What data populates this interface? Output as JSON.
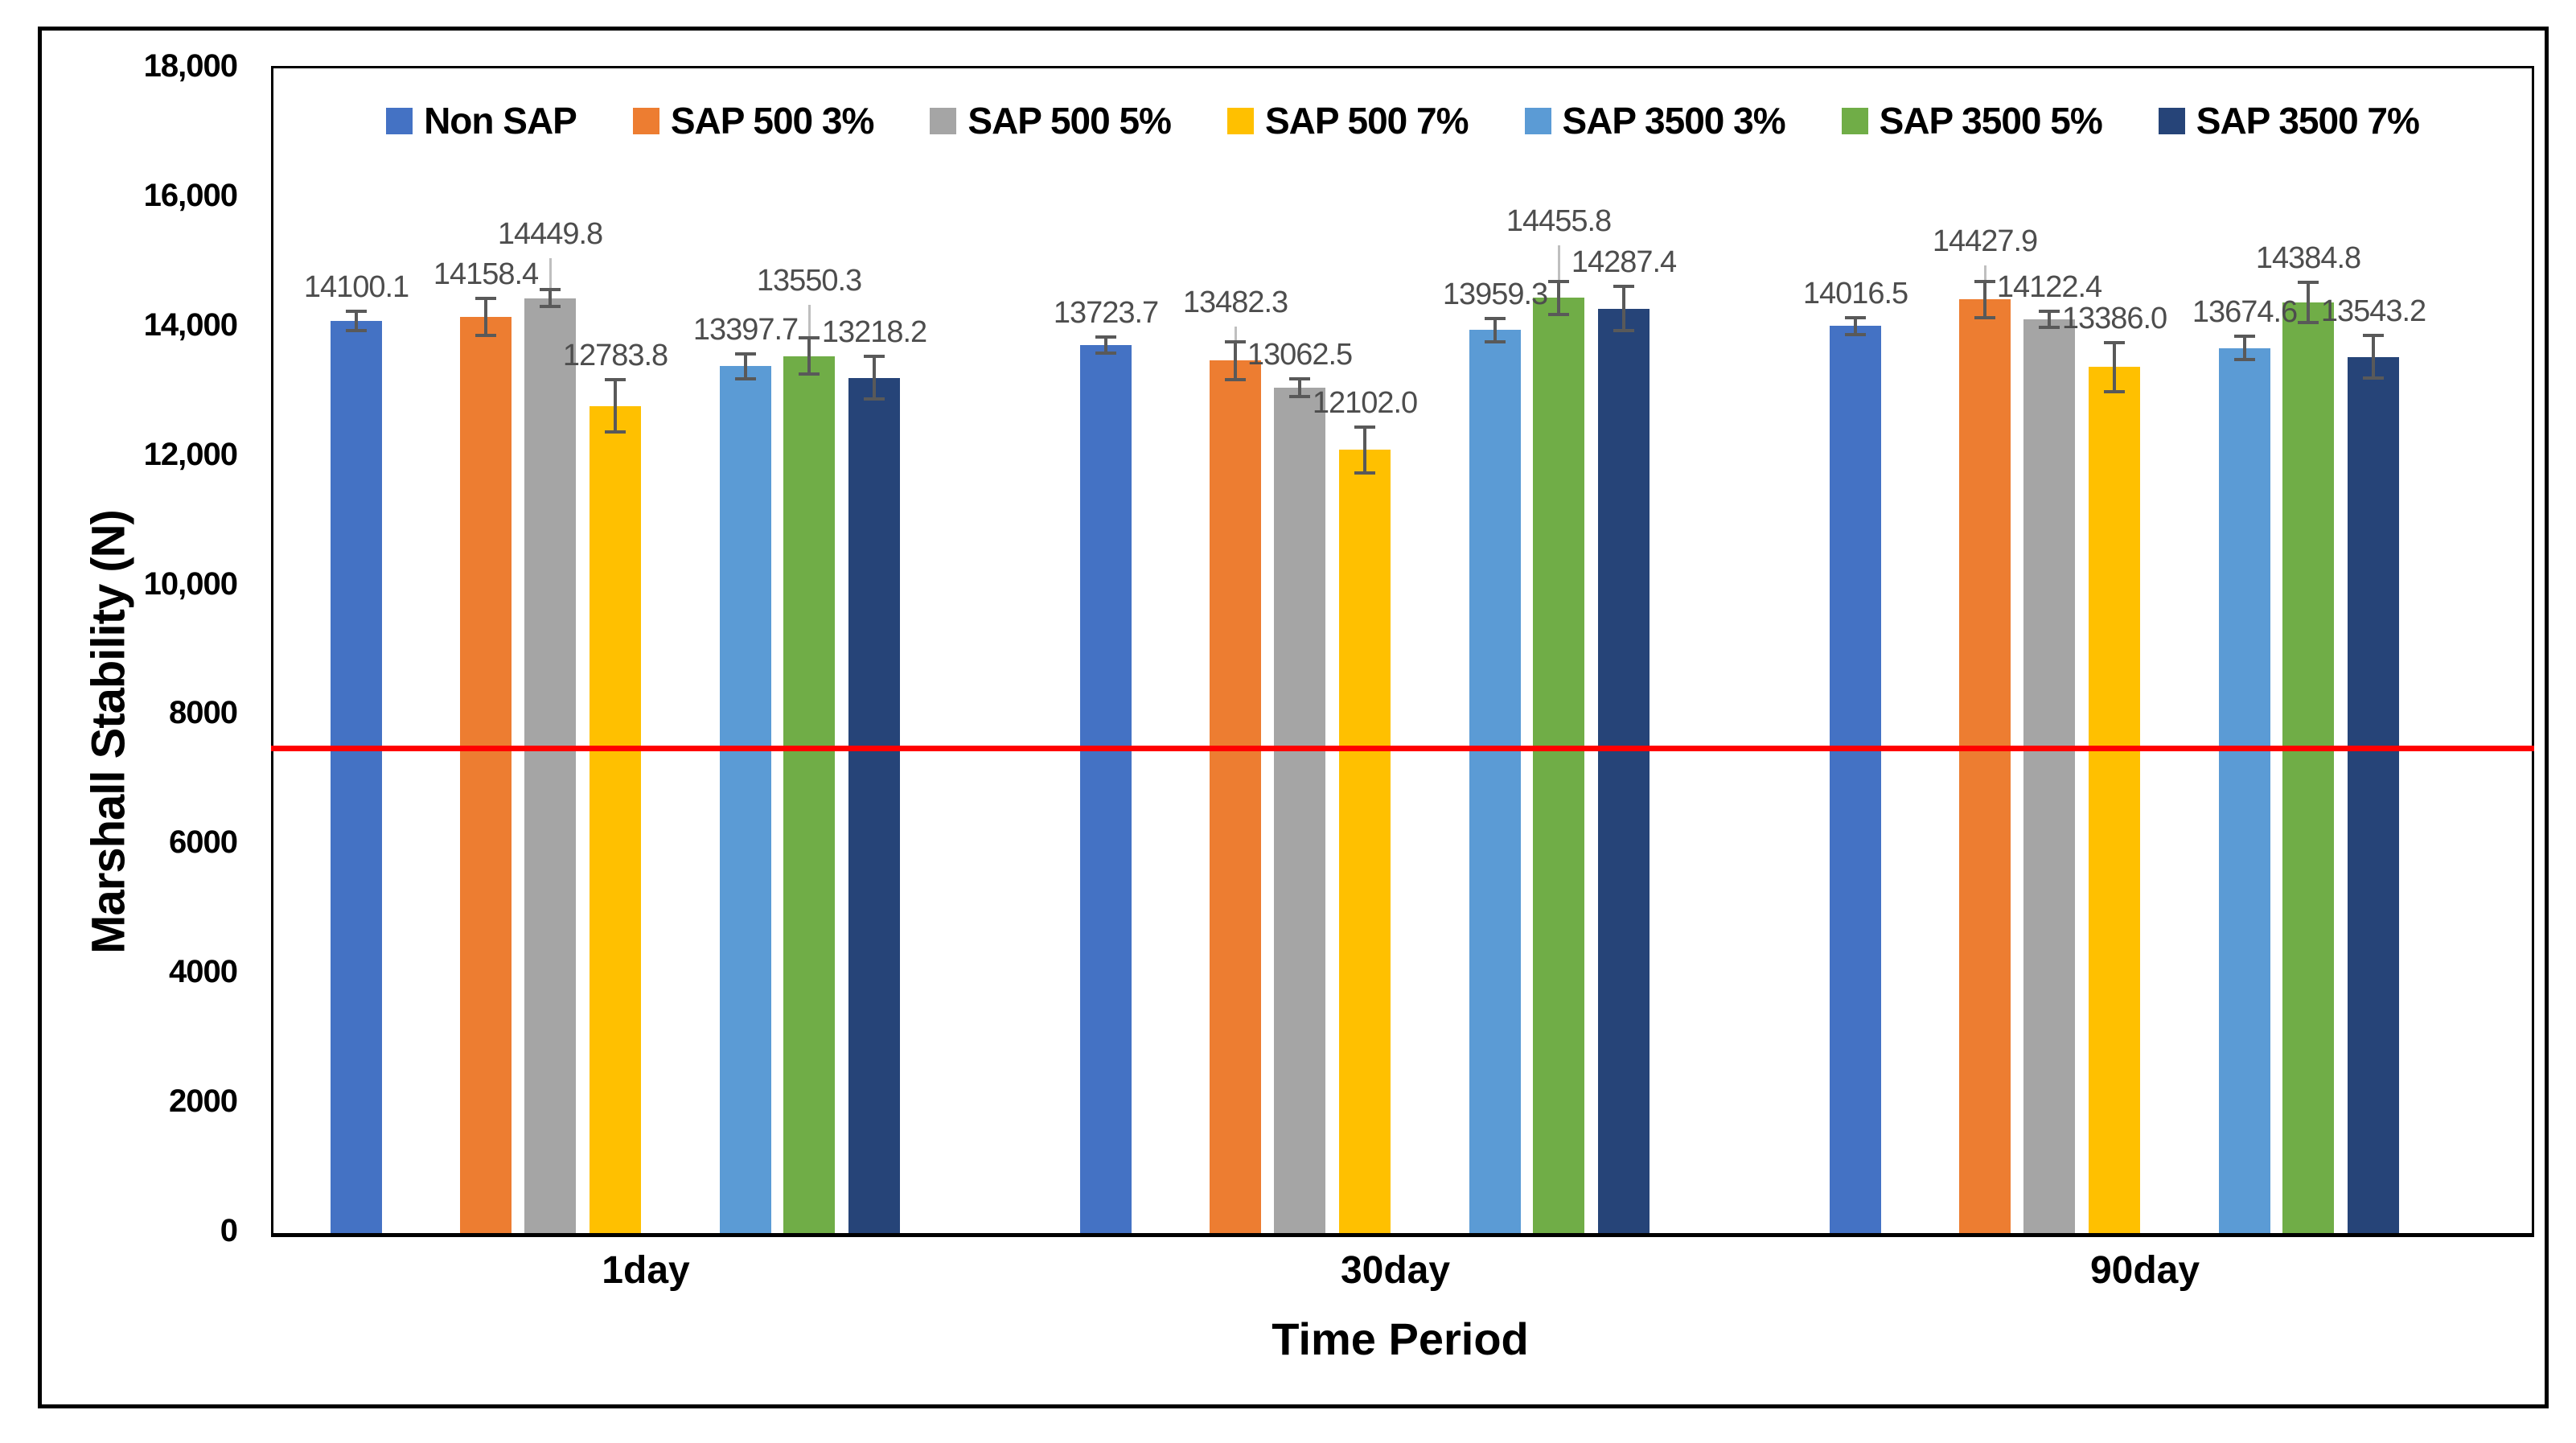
{
  "figure": {
    "background": "#ffffff",
    "border_color": "#000000"
  },
  "chart_data": {
    "type": "bar",
    "title": "",
    "xlabel": "Time Period",
    "ylabel": "Marshall Stability (N)",
    "categories": [
      "1day",
      "30day",
      "90day"
    ],
    "series": [
      {
        "name": "Non SAP",
        "color": "#4472C4",
        "values": [
          14100.1,
          13723.7,
          14016.5
        ],
        "errors": [
          150,
          125,
          130
        ],
        "tails_up": [
          0,
          0,
          0
        ]
      },
      {
        "name": "SAP 500 3%",
        "color": "#ED7D31",
        "values": [
          14158.4,
          13482.3,
          14427.9
        ],
        "errors": [
          290,
          290,
          280
        ],
        "tails_up": [
          0,
          530,
          530
        ]
      },
      {
        "name": "SAP 500 5%",
        "color": "#A5A5A5",
        "values": [
          14449.8,
          13062.5,
          14122.4
        ],
        "errors": [
          130,
          140,
          125
        ],
        "tails_up": [
          620,
          0,
          0
        ]
      },
      {
        "name": "SAP 500 7%",
        "color": "#FFC000",
        "values": [
          12783.8,
          12102.0,
          13386.0
        ],
        "errors": [
          400,
          360,
          380
        ],
        "tails_up": [
          0,
          0,
          0
        ]
      },
      {
        "name": "SAP 3500 3%",
        "color": "#5B9BD5",
        "values": [
          13397.7,
          13959.3,
          13674.6
        ],
        "errors": [
          190,
          180,
          180
        ],
        "tails_up": [
          0,
          0,
          0
        ]
      },
      {
        "name": "SAP 3500 5%",
        "color": "#70AD47",
        "values": [
          13550.3,
          14455.8,
          14384.8
        ],
        "errors": [
          280,
          255,
          310
        ],
        "tails_up": [
          790,
          810,
          0
        ]
      },
      {
        "name": "SAP 3500 7%",
        "color": "#264478",
        "values": [
          13218.2,
          14287.4,
          13543.2
        ],
        "errors": [
          330,
          340,
          335
        ],
        "tails_up": [
          0,
          0,
          0
        ]
      }
    ],
    "value_label_decimals": 1,
    "y_ticks": [
      {
        "label": "18,000",
        "value": 18000
      },
      {
        "label": "16,000",
        "value": 16000
      },
      {
        "label": "14,000",
        "value": 14000
      },
      {
        "label": "12,000",
        "value": 12000
      },
      {
        "label": "10,000",
        "value": 10000
      },
      {
        "label": "8000",
        "value": 8000
      },
      {
        "label": "6000",
        "value": 6000
      },
      {
        "label": "4000",
        "value": 4000
      },
      {
        "label": "2000",
        "value": 2000
      },
      {
        "label": "0",
        "value": 0
      }
    ],
    "ylim": [
      0,
      18000
    ],
    "grid": false,
    "legend_position": "top-inside",
    "reference_line": {
      "value": 7500,
      "color": "#FF0000"
    },
    "error_bar_color": "#595959",
    "error_tail_color": "#BFBFBF",
    "data_label_color": "#4d4d4d"
  }
}
